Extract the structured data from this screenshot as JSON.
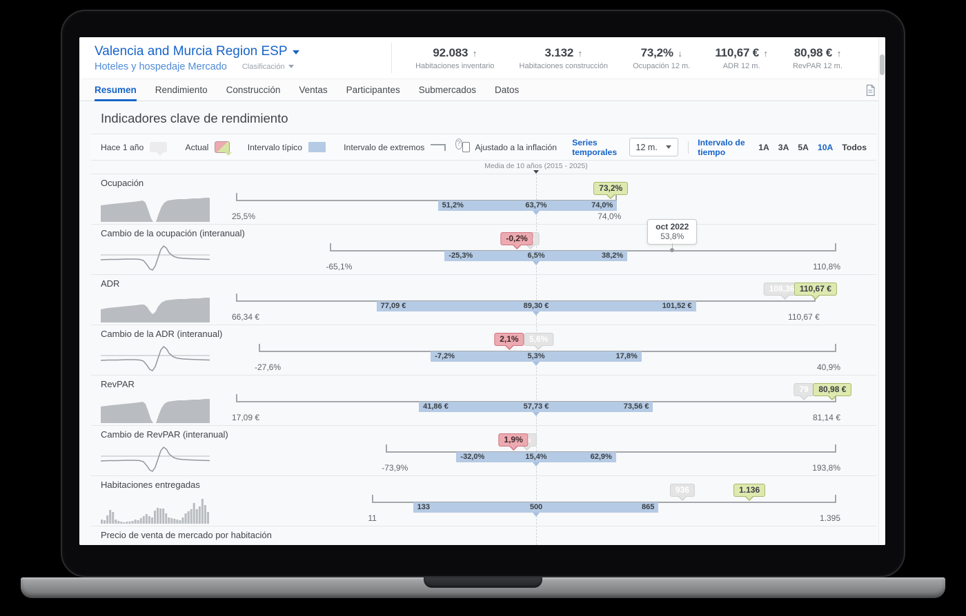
{
  "header": {
    "market_title": "Valencia and Murcia Region ESP",
    "market_subtitle": "Hoteles y hospedaje Mercado",
    "classification_label": "Clasificación",
    "stats": [
      {
        "value": "92.083",
        "trend": "up",
        "label": "Habitaciones inventario"
      },
      {
        "value": "3.132",
        "trend": "up",
        "label": "Habitaciones construcción"
      },
      {
        "value": "73,2%",
        "trend": "down",
        "label": "Ocupación 12 m."
      },
      {
        "value": "110,67 €",
        "trend": "up",
        "label": "ADR 12 m."
      },
      {
        "value": "80,98 €",
        "trend": "up",
        "label": "RevPAR 12 m."
      }
    ]
  },
  "tabs": {
    "items": [
      "Resumen",
      "Rendimiento",
      "Construcción",
      "Ventas",
      "Participantes",
      "Submercados",
      "Datos"
    ],
    "active": "Resumen"
  },
  "section_title": "Indicadores clave de rendimiento",
  "legend": {
    "year_ago_label": "Hace 1 año",
    "current_label": "Actual",
    "typical_label": "Intervalo típico",
    "extremes_label": "Intervalo de extremos",
    "inflation_label": "Ajustado a la inflación",
    "inflation_checked": false,
    "series_label": "Series temporales",
    "series_value": "12 m.",
    "range_label": "Intervalo de tiempo",
    "range_options": [
      "1A",
      "3A",
      "5A",
      "10A",
      "Todos"
    ],
    "range_active": "10A"
  },
  "colors": {
    "accent_blue": "#1764c8",
    "typical_box": "#b5cae4",
    "current_up_badge": "#dde9af",
    "current_down_badge": "#ecaab1",
    "year_ago_badge": "#e4e4e4"
  },
  "chart_data": {
    "type": "boxplot-rows",
    "axis_center_label": "Media de 10 años (2015 - 2025)",
    "rows": [
      {
        "title": "Ocupación",
        "sparkline": "area-dip",
        "min": 25.5,
        "q1": 51.2,
        "median": 63.7,
        "q3": 74.0,
        "max": 74.0,
        "labels": {
          "min": "25,5%",
          "q1": "51,2%",
          "median": "63,7%",
          "q3": "74,0%",
          "max": "74,0%"
        },
        "current": {
          "value": 73.2,
          "label": "73,2%",
          "style": "green"
        }
      },
      {
        "title": "Cambio de la ocupación (interanual)",
        "sparkline": "line-spike",
        "min": -65.1,
        "q1": -25.3,
        "median": 6.5,
        "q3": 38.2,
        "max": 110.8,
        "labels": {
          "min": "-65,1%",
          "q1": "-25,3%",
          "median": "6,5%",
          "q3": "38,2%",
          "max": "110,8%"
        },
        "current": {
          "value": -0.2,
          "label": "-0,2%",
          "style": "red"
        },
        "year_ago": {
          "value": 4.5,
          "label": "%",
          "partial": true
        },
        "tooltip": {
          "title": "oct 2022",
          "label": "53,8%",
          "value": 53.8
        }
      },
      {
        "title": "ADR",
        "sparkline": "area-rise",
        "min": 66.34,
        "q1": 77.09,
        "median": 89.3,
        "q3": 101.52,
        "max": 110.67,
        "labels": {
          "min": "66,34 €",
          "q1": "77,09 €",
          "median": "89,30 €",
          "q3": "101,52 €",
          "max": "110,67 €"
        },
        "current": {
          "value": 110.67,
          "label": "110,67 €",
          "style": "green"
        },
        "year_ago": {
          "value": 108.36,
          "label": "108,36 €"
        }
      },
      {
        "title": "Cambio de la ADR (interanual)",
        "sparkline": "line-spike",
        "min": -27.6,
        "q1": -7.2,
        "median": 5.3,
        "q3": 17.8,
        "max": 40.9,
        "labels": {
          "min": "-27,6%",
          "q1": "-7,2%",
          "median": "5,3%",
          "q3": "17,8%",
          "max": "40,9%"
        },
        "current": {
          "value": 2.1,
          "label": "2,1%",
          "style": "red"
        },
        "year_ago": {
          "value": 5.6,
          "label": "5,6%"
        }
      },
      {
        "title": "RevPAR",
        "sparkline": "area-dip",
        "stretch_right": true,
        "min": 17.09,
        "q1": 41.86,
        "median": 57.73,
        "q3": 73.56,
        "max": 81.14,
        "labels": {
          "min": "17,09 €",
          "q1": "41,86 €",
          "median": "57,73 €",
          "q3": "73,56 €",
          "max": "81,14 €"
        },
        "current": {
          "value": 80.98,
          "label": "80,98 €",
          "style": "green"
        },
        "year_ago": {
          "value": 79.8,
          "label": "79",
          "partial": true
        }
      },
      {
        "title": "Cambio de RevPAR (interanual)",
        "sparkline": "line-spike",
        "min": -73.9,
        "q1": -32.0,
        "median": 15.4,
        "q3": 62.9,
        "max": 193.8,
        "labels": {
          "min": "-73,9%",
          "q1": "-32,0%",
          "median": "15,4%",
          "q3": "62,9%",
          "max": "193,8%"
        },
        "current": {
          "value": 1.9,
          "label": "1,9%",
          "style": "red"
        },
        "year_ago": {
          "value": 10,
          "label": "%",
          "partial": true
        }
      },
      {
        "title": "Habitaciones entregadas",
        "sparkline": "bars",
        "min": 11,
        "q1": 133,
        "median": 500,
        "q3": 865,
        "max": 1395,
        "labels": {
          "min": "11",
          "q1": "133",
          "median": "500",
          "q3": "865",
          "max": "1.395"
        },
        "current": {
          "value": 1136,
          "label": "1.136",
          "style": "green"
        },
        "year_ago": {
          "value": 936,
          "label": "936"
        }
      },
      {
        "title": "Precio de venta de mercado por habitación",
        "partial": true
      }
    ]
  }
}
